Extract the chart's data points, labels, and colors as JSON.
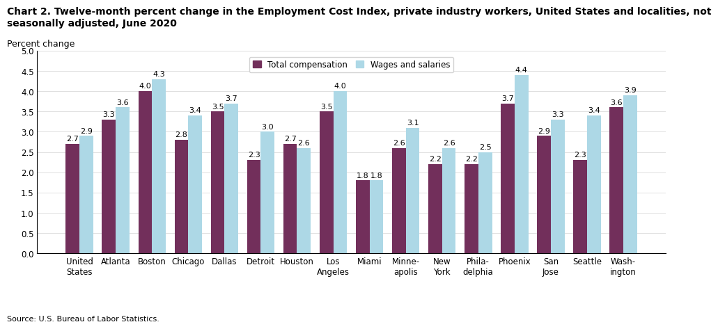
{
  "title_line1": "Chart 2. Twelve-month percent change in the Employment Cost Index, private industry workers, United States and localities, not",
  "title_line2": "seasonally adjusted, June 2020",
  "ylabel": "Percent change",
  "source": "Source: U.S. Bureau of Labor Statistics.",
  "ylim": [
    0.0,
    5.0
  ],
  "yticks": [
    0.0,
    0.5,
    1.0,
    1.5,
    2.0,
    2.5,
    3.0,
    3.5,
    4.0,
    4.5,
    5.0
  ],
  "categories": [
    "United\nStates",
    "Atlanta",
    "Boston",
    "Chicago",
    "Dallas",
    "Detroit",
    "Houston",
    "Los\nAngeles",
    "Miami",
    "Minne-\napolis",
    "New\nYork",
    "Phila-\ndelphia",
    "Phoenix",
    "San\nJose",
    "Seattle",
    "Wash-\nington"
  ],
  "total_compensation": [
    2.7,
    3.3,
    4.0,
    2.8,
    3.5,
    2.3,
    2.7,
    3.5,
    1.8,
    2.6,
    2.2,
    2.2,
    3.7,
    2.9,
    2.3,
    3.6
  ],
  "wages_and_salaries": [
    2.9,
    3.6,
    4.3,
    3.4,
    3.7,
    3.0,
    2.6,
    4.0,
    1.8,
    3.1,
    2.6,
    2.5,
    4.4,
    3.3,
    3.4,
    3.9
  ],
  "color_total": "#722F5B",
  "color_wages": "#ADD8E6",
  "legend_labels": [
    "Total compensation",
    "Wages and salaries"
  ],
  "bar_width": 0.38,
  "title_fontsize": 10,
  "axis_label_fontsize": 9,
  "tick_fontsize": 8.5,
  "bar_label_fontsize": 8.0
}
